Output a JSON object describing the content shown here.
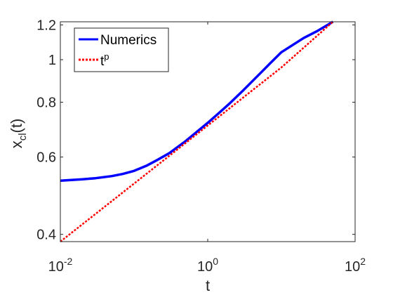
{
  "chart_data": {
    "type": "line",
    "title": "",
    "xlabel": "t",
    "ylabel": {
      "base": "x",
      "sub": "cl",
      "suffix": "(t)"
    },
    "x_scale": "log",
    "y_scale": "log",
    "xlim": [
      0.01,
      100
    ],
    "ylim": [
      0.385,
      1.22
    ],
    "x_ticks": [
      {
        "value": 0.01,
        "base": "10",
        "exp": "-2"
      },
      {
        "value": 1,
        "base": "10",
        "exp": "0"
      },
      {
        "value": 100,
        "base": "10",
        "exp": "2"
      }
    ],
    "y_ticks": [
      {
        "value": 0.4,
        "label": "0.4"
      },
      {
        "value": 0.6,
        "label": "0.6"
      },
      {
        "value": 0.8,
        "label": "0.8"
      },
      {
        "value": 1.0,
        "label": "1"
      },
      {
        "value": 1.2,
        "label": "1.2"
      }
    ],
    "grid": false,
    "legend_position": "top-left",
    "series": [
      {
        "name": "Numerics",
        "color": "#0000ff",
        "style": "solid",
        "x": [
          0.01,
          0.02,
          0.03,
          0.05,
          0.07,
          0.1,
          0.15,
          0.2,
          0.3,
          0.5,
          0.7,
          1,
          1.5,
          2,
          3,
          5,
          7,
          10,
          20,
          30,
          50
        ],
        "y": [
          0.53,
          0.534,
          0.537,
          0.543,
          0.549,
          0.558,
          0.574,
          0.589,
          0.612,
          0.652,
          0.683,
          0.718,
          0.762,
          0.796,
          0.85,
          0.926,
          0.98,
          1.04,
          1.12,
          1.16,
          1.22
        ]
      },
      {
        "name": {
          "base": "t",
          "sup": "p"
        },
        "color": "#ff0000",
        "style": "dotted",
        "x": [
          0.01,
          0.1,
          1,
          10,
          50
        ],
        "y": [
          0.385,
          0.522,
          0.708,
          0.96,
          1.22
        ]
      }
    ]
  }
}
